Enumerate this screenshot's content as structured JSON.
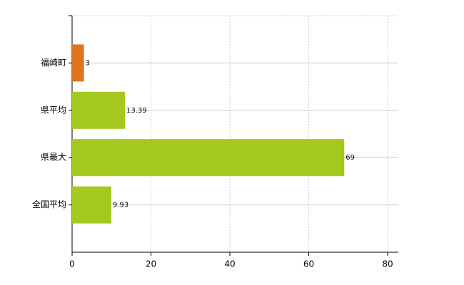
{
  "chart_data": {
    "type": "bar",
    "orientation": "horizontal",
    "categories": [
      "福崎町",
      "県平均",
      "県最大",
      "全国平均"
    ],
    "values": [
      3,
      13.39,
      69,
      9.93
    ],
    "colors": [
      "#e0731e",
      "#a5c81e",
      "#a5c81e",
      "#a5c81e"
    ],
    "xlim": [
      0,
      80
    ],
    "xticks": [
      0,
      20,
      40,
      60,
      80
    ],
    "grid": true
  }
}
